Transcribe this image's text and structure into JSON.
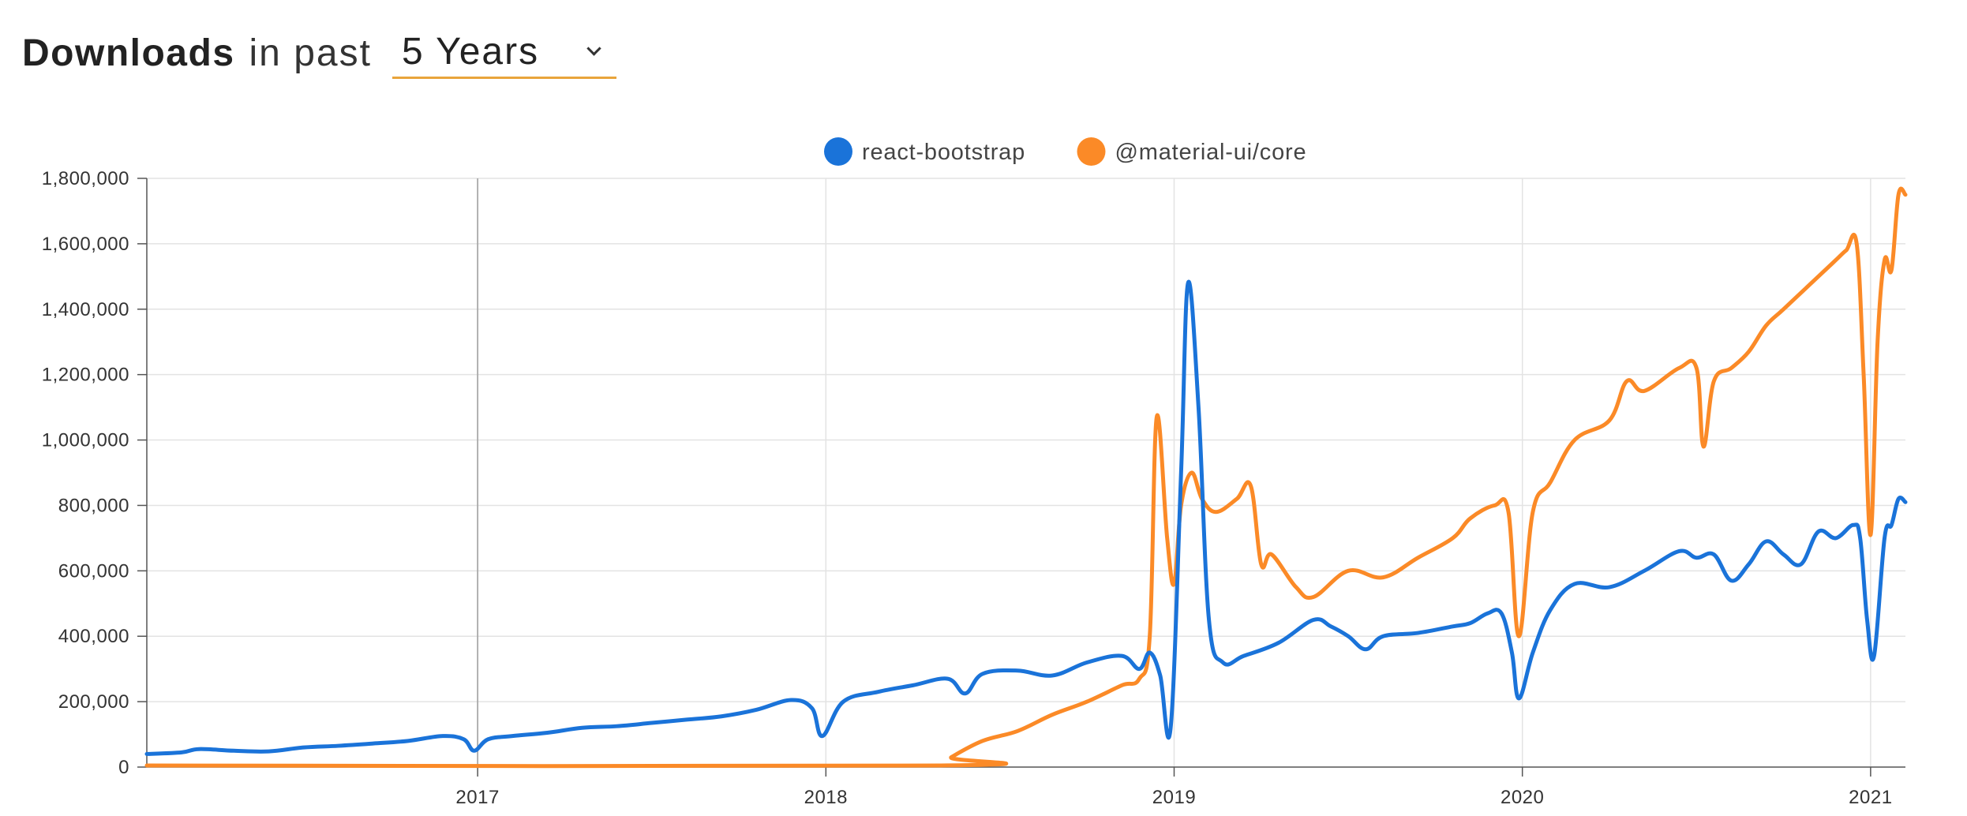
{
  "header": {
    "title": "Downloads",
    "subtitle": "in past",
    "period": "5 Years"
  },
  "colors": {
    "react_bootstrap": "#1a73d9",
    "material_ui": "#fb8a27",
    "grid": "#e3e3e3",
    "axis": "#555555",
    "highlight_line": "#a9a9a9"
  },
  "chart_data": {
    "type": "line",
    "title": "",
    "xlabel": "",
    "ylabel": "",
    "x_range": [
      2016.05,
      2021.1
    ],
    "ylim": [
      0,
      1800000
    ],
    "y_ticks": [
      {
        "value": 0,
        "label": "0"
      },
      {
        "value": 200000,
        "label": "200,000"
      },
      {
        "value": 400000,
        "label": "400,000"
      },
      {
        "value": 600000,
        "label": "600,000"
      },
      {
        "value": 800000,
        "label": "800,000"
      },
      {
        "value": 1000000,
        "label": "1,000,000"
      },
      {
        "value": 1200000,
        "label": "1,200,000"
      },
      {
        "value": 1400000,
        "label": "1,400,000"
      },
      {
        "value": 1600000,
        "label": "1,600,000"
      },
      {
        "value": 1800000,
        "label": "1,800,000"
      }
    ],
    "x_ticks": [
      {
        "value": 2017,
        "label": "2017"
      },
      {
        "value": 2018,
        "label": "2018"
      },
      {
        "value": 2019,
        "label": "2019"
      },
      {
        "value": 2020,
        "label": "2020"
      },
      {
        "value": 2021,
        "label": "2021"
      }
    ],
    "highlight_x": 2017,
    "grid": true,
    "legend_position": "top-center",
    "series": [
      {
        "name": "react-bootstrap",
        "color": "#1a73d9",
        "points": [
          [
            2016.05,
            40000
          ],
          [
            2016.15,
            45000
          ],
          [
            2016.2,
            55000
          ],
          [
            2016.3,
            50000
          ],
          [
            2016.4,
            48000
          ],
          [
            2016.5,
            60000
          ],
          [
            2016.6,
            65000
          ],
          [
            2016.7,
            72000
          ],
          [
            2016.8,
            80000
          ],
          [
            2016.9,
            95000
          ],
          [
            2016.96,
            85000
          ],
          [
            2016.99,
            50000
          ],
          [
            2017.03,
            85000
          ],
          [
            2017.1,
            95000
          ],
          [
            2017.2,
            105000
          ],
          [
            2017.3,
            120000
          ],
          [
            2017.4,
            125000
          ],
          [
            2017.5,
            135000
          ],
          [
            2017.6,
            145000
          ],
          [
            2017.7,
            155000
          ],
          [
            2017.8,
            175000
          ],
          [
            2017.9,
            205000
          ],
          [
            2017.96,
            180000
          ],
          [
            2017.99,
            95000
          ],
          [
            2018.05,
            200000
          ],
          [
            2018.15,
            230000
          ],
          [
            2018.25,
            250000
          ],
          [
            2018.35,
            270000
          ],
          [
            2018.4,
            225000
          ],
          [
            2018.45,
            285000
          ],
          [
            2018.55,
            295000
          ],
          [
            2018.65,
            280000
          ],
          [
            2018.75,
            320000
          ],
          [
            2018.85,
            340000
          ],
          [
            2018.9,
            300000
          ],
          [
            2018.93,
            350000
          ],
          [
            2018.96,
            280000
          ],
          [
            2018.99,
            120000
          ],
          [
            2019.02,
            900000
          ],
          [
            2019.04,
            1480000
          ],
          [
            2019.07,
            1100000
          ],
          [
            2019.1,
            450000
          ],
          [
            2019.14,
            320000
          ],
          [
            2019.2,
            340000
          ],
          [
            2019.3,
            380000
          ],
          [
            2019.4,
            450000
          ],
          [
            2019.45,
            430000
          ],
          [
            2019.5,
            400000
          ],
          [
            2019.55,
            360000
          ],
          [
            2019.6,
            400000
          ],
          [
            2019.7,
            410000
          ],
          [
            2019.8,
            430000
          ],
          [
            2019.85,
            440000
          ],
          [
            2019.9,
            470000
          ],
          [
            2019.94,
            470000
          ],
          [
            2019.97,
            350000
          ],
          [
            2019.99,
            210000
          ],
          [
            2020.03,
            350000
          ],
          [
            2020.08,
            480000
          ],
          [
            2020.15,
            560000
          ],
          [
            2020.25,
            550000
          ],
          [
            2020.35,
            600000
          ],
          [
            2020.45,
            660000
          ],
          [
            2020.5,
            640000
          ],
          [
            2020.55,
            650000
          ],
          [
            2020.6,
            570000
          ],
          [
            2020.65,
            620000
          ],
          [
            2020.7,
            690000
          ],
          [
            2020.75,
            650000
          ],
          [
            2020.8,
            620000
          ],
          [
            2020.85,
            720000
          ],
          [
            2020.9,
            700000
          ],
          [
            2020.95,
            740000
          ],
          [
            2020.97,
            700000
          ],
          [
            2020.99,
            450000
          ],
          [
            2021.01,
            340000
          ],
          [
            2021.04,
            700000
          ],
          [
            2021.06,
            740000
          ],
          [
            2021.08,
            820000
          ],
          [
            2021.1,
            810000
          ]
        ]
      },
      {
        "name": "@material-ui/core",
        "color": "#fb8a27",
        "points": [
          [
            2016.05,
            0
          ],
          [
            2018.33,
            0
          ],
          [
            2018.36,
            30000
          ],
          [
            2018.45,
            80000
          ],
          [
            2018.55,
            110000
          ],
          [
            2018.65,
            160000
          ],
          [
            2018.75,
            200000
          ],
          [
            2018.85,
            250000
          ],
          [
            2018.9,
            270000
          ],
          [
            2018.93,
            400000
          ],
          [
            2018.95,
            1070000
          ],
          [
            2018.98,
            700000
          ],
          [
            2019.0,
            560000
          ],
          [
            2019.02,
            800000
          ],
          [
            2019.05,
            900000
          ],
          [
            2019.08,
            820000
          ],
          [
            2019.12,
            780000
          ],
          [
            2019.18,
            820000
          ],
          [
            2019.22,
            860000
          ],
          [
            2019.25,
            620000
          ],
          [
            2019.28,
            650000
          ],
          [
            2019.35,
            550000
          ],
          [
            2019.4,
            520000
          ],
          [
            2019.5,
            600000
          ],
          [
            2019.6,
            580000
          ],
          [
            2019.7,
            640000
          ],
          [
            2019.8,
            700000
          ],
          [
            2019.85,
            760000
          ],
          [
            2019.92,
            800000
          ],
          [
            2019.96,
            780000
          ],
          [
            2019.99,
            400000
          ],
          [
            2020.03,
            780000
          ],
          [
            2020.08,
            870000
          ],
          [
            2020.15,
            1000000
          ],
          [
            2020.25,
            1060000
          ],
          [
            2020.3,
            1180000
          ],
          [
            2020.35,
            1150000
          ],
          [
            2020.45,
            1220000
          ],
          [
            2020.5,
            1220000
          ],
          [
            2020.52,
            980000
          ],
          [
            2020.55,
            1180000
          ],
          [
            2020.6,
            1220000
          ],
          [
            2020.65,
            1270000
          ],
          [
            2020.7,
            1350000
          ],
          [
            2020.75,
            1400000
          ],
          [
            2020.85,
            1500000
          ],
          [
            2020.9,
            1550000
          ],
          [
            2020.93,
            1580000
          ],
          [
            2020.96,
            1600000
          ],
          [
            2020.98,
            1200000
          ],
          [
            2021.0,
            710000
          ],
          [
            2021.02,
            1300000
          ],
          [
            2021.04,
            1550000
          ],
          [
            2021.06,
            1520000
          ],
          [
            2021.08,
            1750000
          ],
          [
            2021.1,
            1750000
          ]
        ]
      }
    ]
  }
}
